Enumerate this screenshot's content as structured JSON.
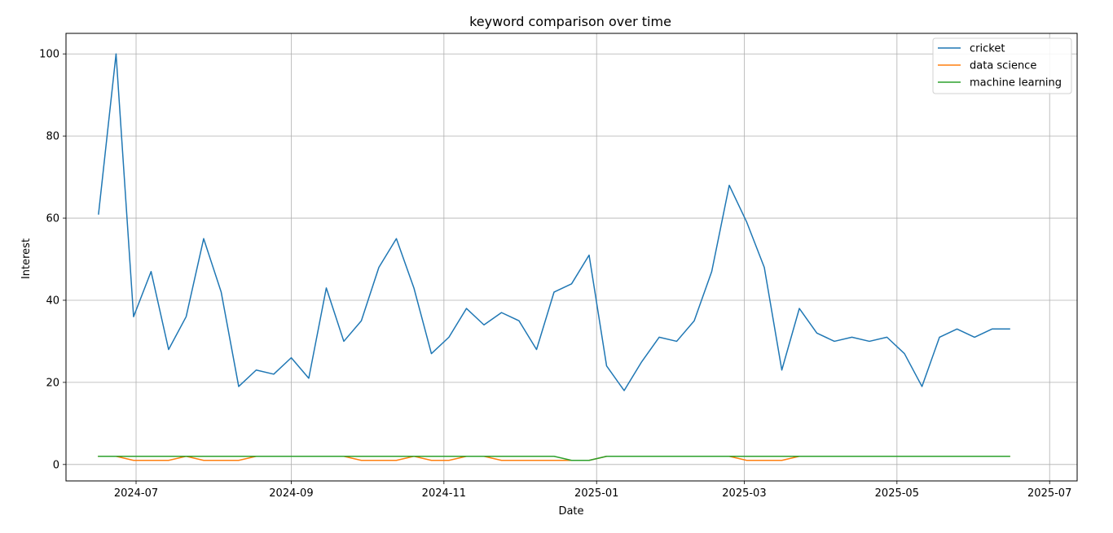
{
  "chart_data": {
    "type": "line",
    "title": "keyword comparison over time",
    "xlabel": "Date",
    "ylabel": "Interest",
    "x_type": "date",
    "x": [
      "2024-06-16",
      "2024-06-23",
      "2024-06-30",
      "2024-07-07",
      "2024-07-14",
      "2024-07-21",
      "2024-07-28",
      "2024-08-04",
      "2024-08-11",
      "2024-08-18",
      "2024-08-25",
      "2024-09-01",
      "2024-09-08",
      "2024-09-15",
      "2024-09-22",
      "2024-09-29",
      "2024-10-06",
      "2024-10-13",
      "2024-10-20",
      "2024-10-27",
      "2024-11-03",
      "2024-11-10",
      "2024-11-17",
      "2024-11-24",
      "2024-12-01",
      "2024-12-08",
      "2024-12-15",
      "2024-12-22",
      "2024-12-29",
      "2025-01-05",
      "2025-01-12",
      "2025-01-19",
      "2025-01-26",
      "2025-02-02",
      "2025-02-09",
      "2025-02-16",
      "2025-02-23",
      "2025-03-02",
      "2025-03-09",
      "2025-03-16",
      "2025-03-23",
      "2025-03-30",
      "2025-04-06",
      "2025-04-13",
      "2025-04-20",
      "2025-04-27",
      "2025-05-04",
      "2025-05-11",
      "2025-05-18",
      "2025-05-25",
      "2025-06-01",
      "2025-06-08",
      "2025-06-15"
    ],
    "series": [
      {
        "name": "cricket",
        "color": "#1f77b4",
        "values": [
          61,
          100,
          36,
          47,
          28,
          36,
          55,
          42,
          19,
          23,
          22,
          26,
          21,
          43,
          30,
          35,
          48,
          55,
          43,
          27,
          31,
          38,
          34,
          37,
          35,
          28,
          42,
          44,
          51,
          24,
          18,
          25,
          31,
          30,
          35,
          47,
          68,
          59,
          48,
          23,
          38,
          32,
          30,
          31,
          30,
          31,
          27,
          19,
          31,
          33,
          31,
          33,
          33
        ]
      },
      {
        "name": "data science",
        "color": "#ff7f0e",
        "values": [
          2,
          2,
          1,
          1,
          1,
          2,
          1,
          1,
          1,
          2,
          2,
          2,
          2,
          2,
          2,
          1,
          1,
          1,
          2,
          1,
          1,
          2,
          2,
          1,
          1,
          1,
          1,
          1,
          1,
          2,
          2,
          2,
          2,
          2,
          2,
          2,
          2,
          1,
          1,
          1,
          2,
          2,
          2,
          2,
          2,
          2,
          2,
          2,
          2,
          2,
          2,
          2,
          2
        ]
      },
      {
        "name": "machine learning",
        "color": "#2ca02c",
        "values": [
          2,
          2,
          2,
          2,
          2,
          2,
          2,
          2,
          2,
          2,
          2,
          2,
          2,
          2,
          2,
          2,
          2,
          2,
          2,
          2,
          2,
          2,
          2,
          2,
          2,
          2,
          2,
          1,
          1,
          2,
          2,
          2,
          2,
          2,
          2,
          2,
          2,
          2,
          2,
          2,
          2,
          2,
          2,
          2,
          2,
          2,
          2,
          2,
          2,
          2,
          2,
          2,
          2
        ]
      }
    ],
    "xlim": [
      "2024-06-03",
      "2025-07-12"
    ],
    "ylim": [
      -4,
      105
    ],
    "x_ticks": [
      {
        "date": "2024-07-01",
        "label": "2024-07"
      },
      {
        "date": "2024-09-01",
        "label": "2024-09"
      },
      {
        "date": "2024-11-01",
        "label": "2024-11"
      },
      {
        "date": "2025-01-01",
        "label": "2025-01"
      },
      {
        "date": "2025-03-01",
        "label": "2025-03"
      },
      {
        "date": "2025-05-01",
        "label": "2025-05"
      },
      {
        "date": "2025-07-01",
        "label": "2025-07"
      }
    ],
    "y_ticks": [
      0,
      20,
      40,
      60,
      80,
      100
    ],
    "grid": true,
    "legend_position": "top-right"
  }
}
